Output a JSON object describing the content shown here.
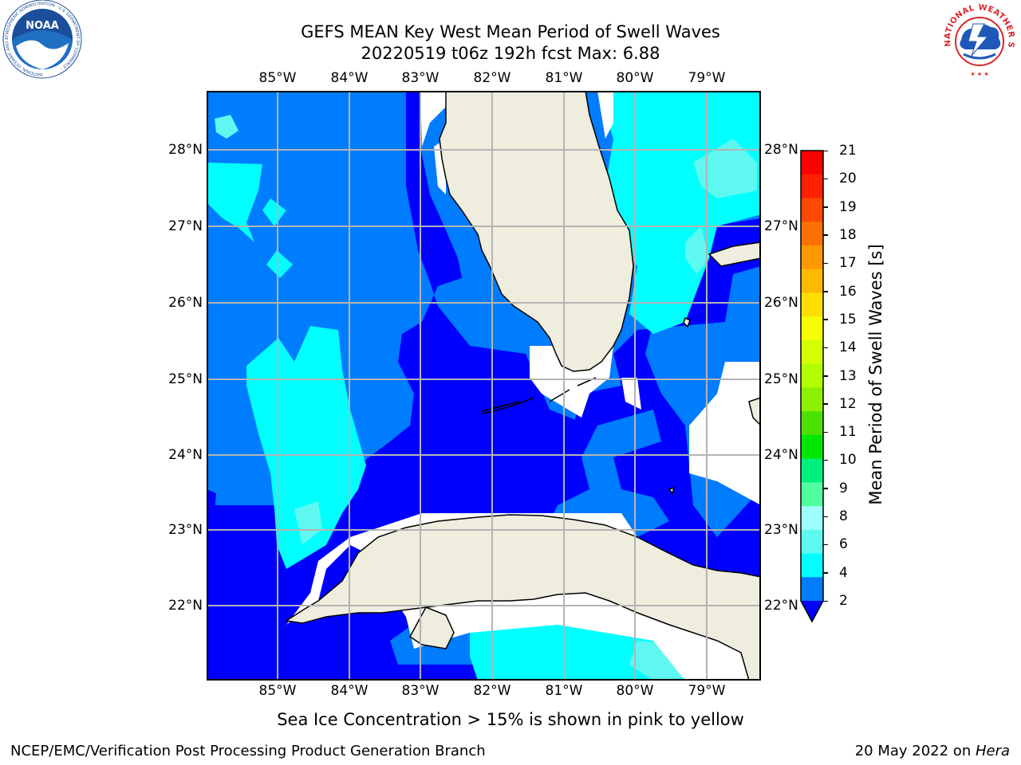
{
  "header": {
    "title_line1": "GEFS MEAN Key West Mean Period of Swell Waves",
    "title_line2": "20220519 t06z 192h fcst   Max: 6.88"
  },
  "logos": {
    "left": {
      "text": "NOAA",
      "ring_text": "NATIONAL OCEANIC AND ATMOSPHERIC ADMINISTRATION · U.S. DEPARTMENT OF COMMERCE ·",
      "color": "#1a4e9a"
    },
    "right": {
      "ring_text": "NATIONAL WEATHER SERVICE",
      "color": "#d7262b"
    }
  },
  "map": {
    "longitude_labels": [
      "85°W",
      "84°W",
      "83°W",
      "82°W",
      "81°W",
      "80°W",
      "79°W"
    ],
    "latitude_labels": [
      "28°N",
      "27°N",
      "26°N",
      "25°N",
      "24°N",
      "23°N",
      "22°N"
    ],
    "land_color": "#eeedde",
    "missing_color": "#ffffff"
  },
  "colorbar": {
    "label": "Mean Period of Swell Waves [s]",
    "ticks": [
      "21",
      "20",
      "19",
      "18",
      "17",
      "16",
      "15",
      "14",
      "13",
      "12",
      "11",
      "10",
      "9",
      "8",
      "6",
      "4",
      "2"
    ],
    "colors": [
      "#ff0000",
      "#ff2000",
      "#ff4800",
      "#ff7000",
      "#ff9800",
      "#ffb800",
      "#ffde00",
      "#f5ff00",
      "#d4ff00",
      "#b0ff00",
      "#8cf000",
      "#4ce000",
      "#00e800",
      "#00f07c",
      "#50ff9e",
      "#9fffff",
      "#5ff8f0",
      "#00ffff",
      "#007cff"
    ],
    "under_color": "#0000ff"
  },
  "footer": {
    "note": "Sea Ice Concentration > 15% is shown in pink to yellow",
    "credit": "NCEP/EMC/Verification Post Processing Product Generation Branch",
    "date": "20 May 2022 on ",
    "host": "Hera"
  }
}
